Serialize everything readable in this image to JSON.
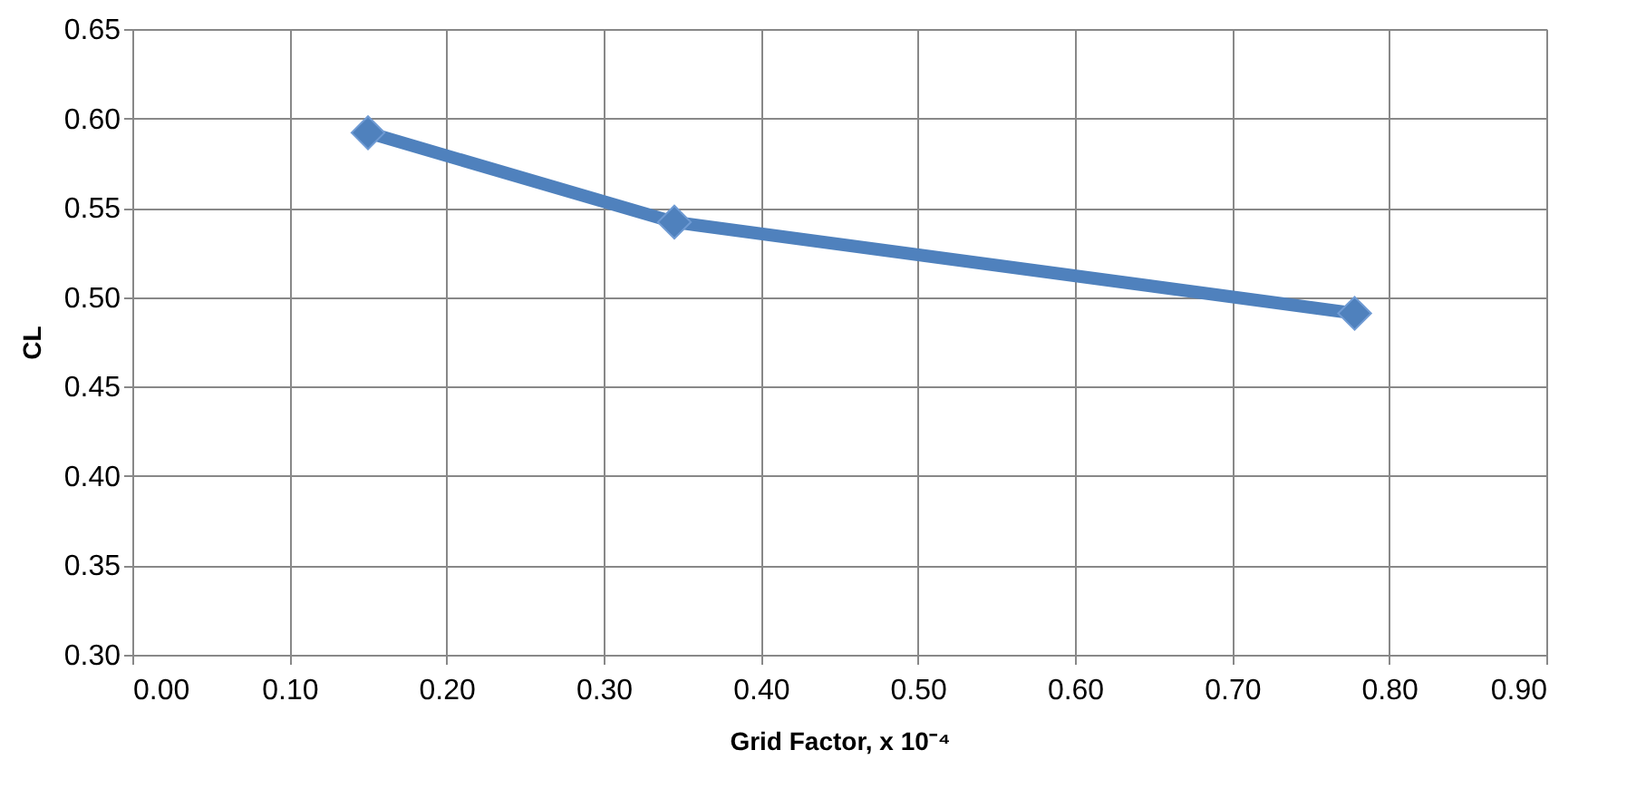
{
  "chart_data": {
    "type": "line",
    "x": [
      0.15,
      0.345,
      0.778
    ],
    "series": [
      {
        "color": "#4f81bd",
        "values": [
          0.592,
          0.542,
          0.491
        ]
      }
    ],
    "xlim": [
      0,
      0.9
    ],
    "xticks": [
      {
        "value": 0,
        "label": "0.00"
      },
      {
        "value": 0.1,
        "label": "0.10"
      },
      {
        "value": 0.2,
        "label": "0.20"
      },
      {
        "value": 0.3,
        "label": "0.30"
      },
      {
        "value": 0.4,
        "label": "0.40"
      },
      {
        "value": 0.5,
        "label": "0.50"
      },
      {
        "value": 0.6,
        "label": "0.60"
      },
      {
        "value": 0.7,
        "label": "0.70"
      },
      {
        "value": 0.8,
        "label": "0.80"
      },
      {
        "value": 0.9,
        "label": "0.90"
      }
    ],
    "ylim": [
      0.3,
      0.65
    ],
    "yticks": [
      {
        "value": 0.3,
        "label": "0.30"
      },
      0.35,
      {
        "value": 0.4,
        "label": "0.40"
      },
      0.45,
      {
        "value": 0.5,
        "label": "0.50"
      },
      0.55,
      {
        "value": 0.6,
        "label": "0.60"
      },
      0.65
    ],
    "xlabel": "Grid Factor, x 10⁻⁴",
    "ylabel": "CL",
    "grid": true,
    "marker": "diamond",
    "line_style": "solid"
  }
}
